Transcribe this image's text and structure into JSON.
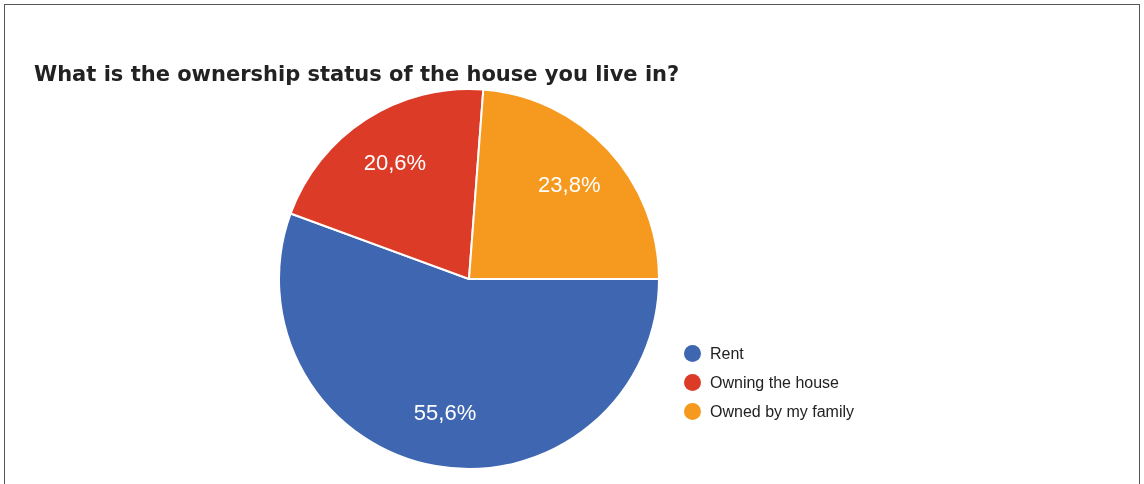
{
  "chart_data": {
    "type": "pie",
    "title": "What is the ownership status of the house you live in?",
    "categories": [
      "Rent",
      "Owning the house",
      "Owned by my family"
    ],
    "values": [
      55.6,
      20.6,
      23.8
    ],
    "colors": [
      "#3f66b0",
      "#dc3c27",
      "#f59a1f"
    ],
    "value_labels": [
      "55,6%",
      "20,6%",
      "23,8%"
    ],
    "legend": "right"
  }
}
